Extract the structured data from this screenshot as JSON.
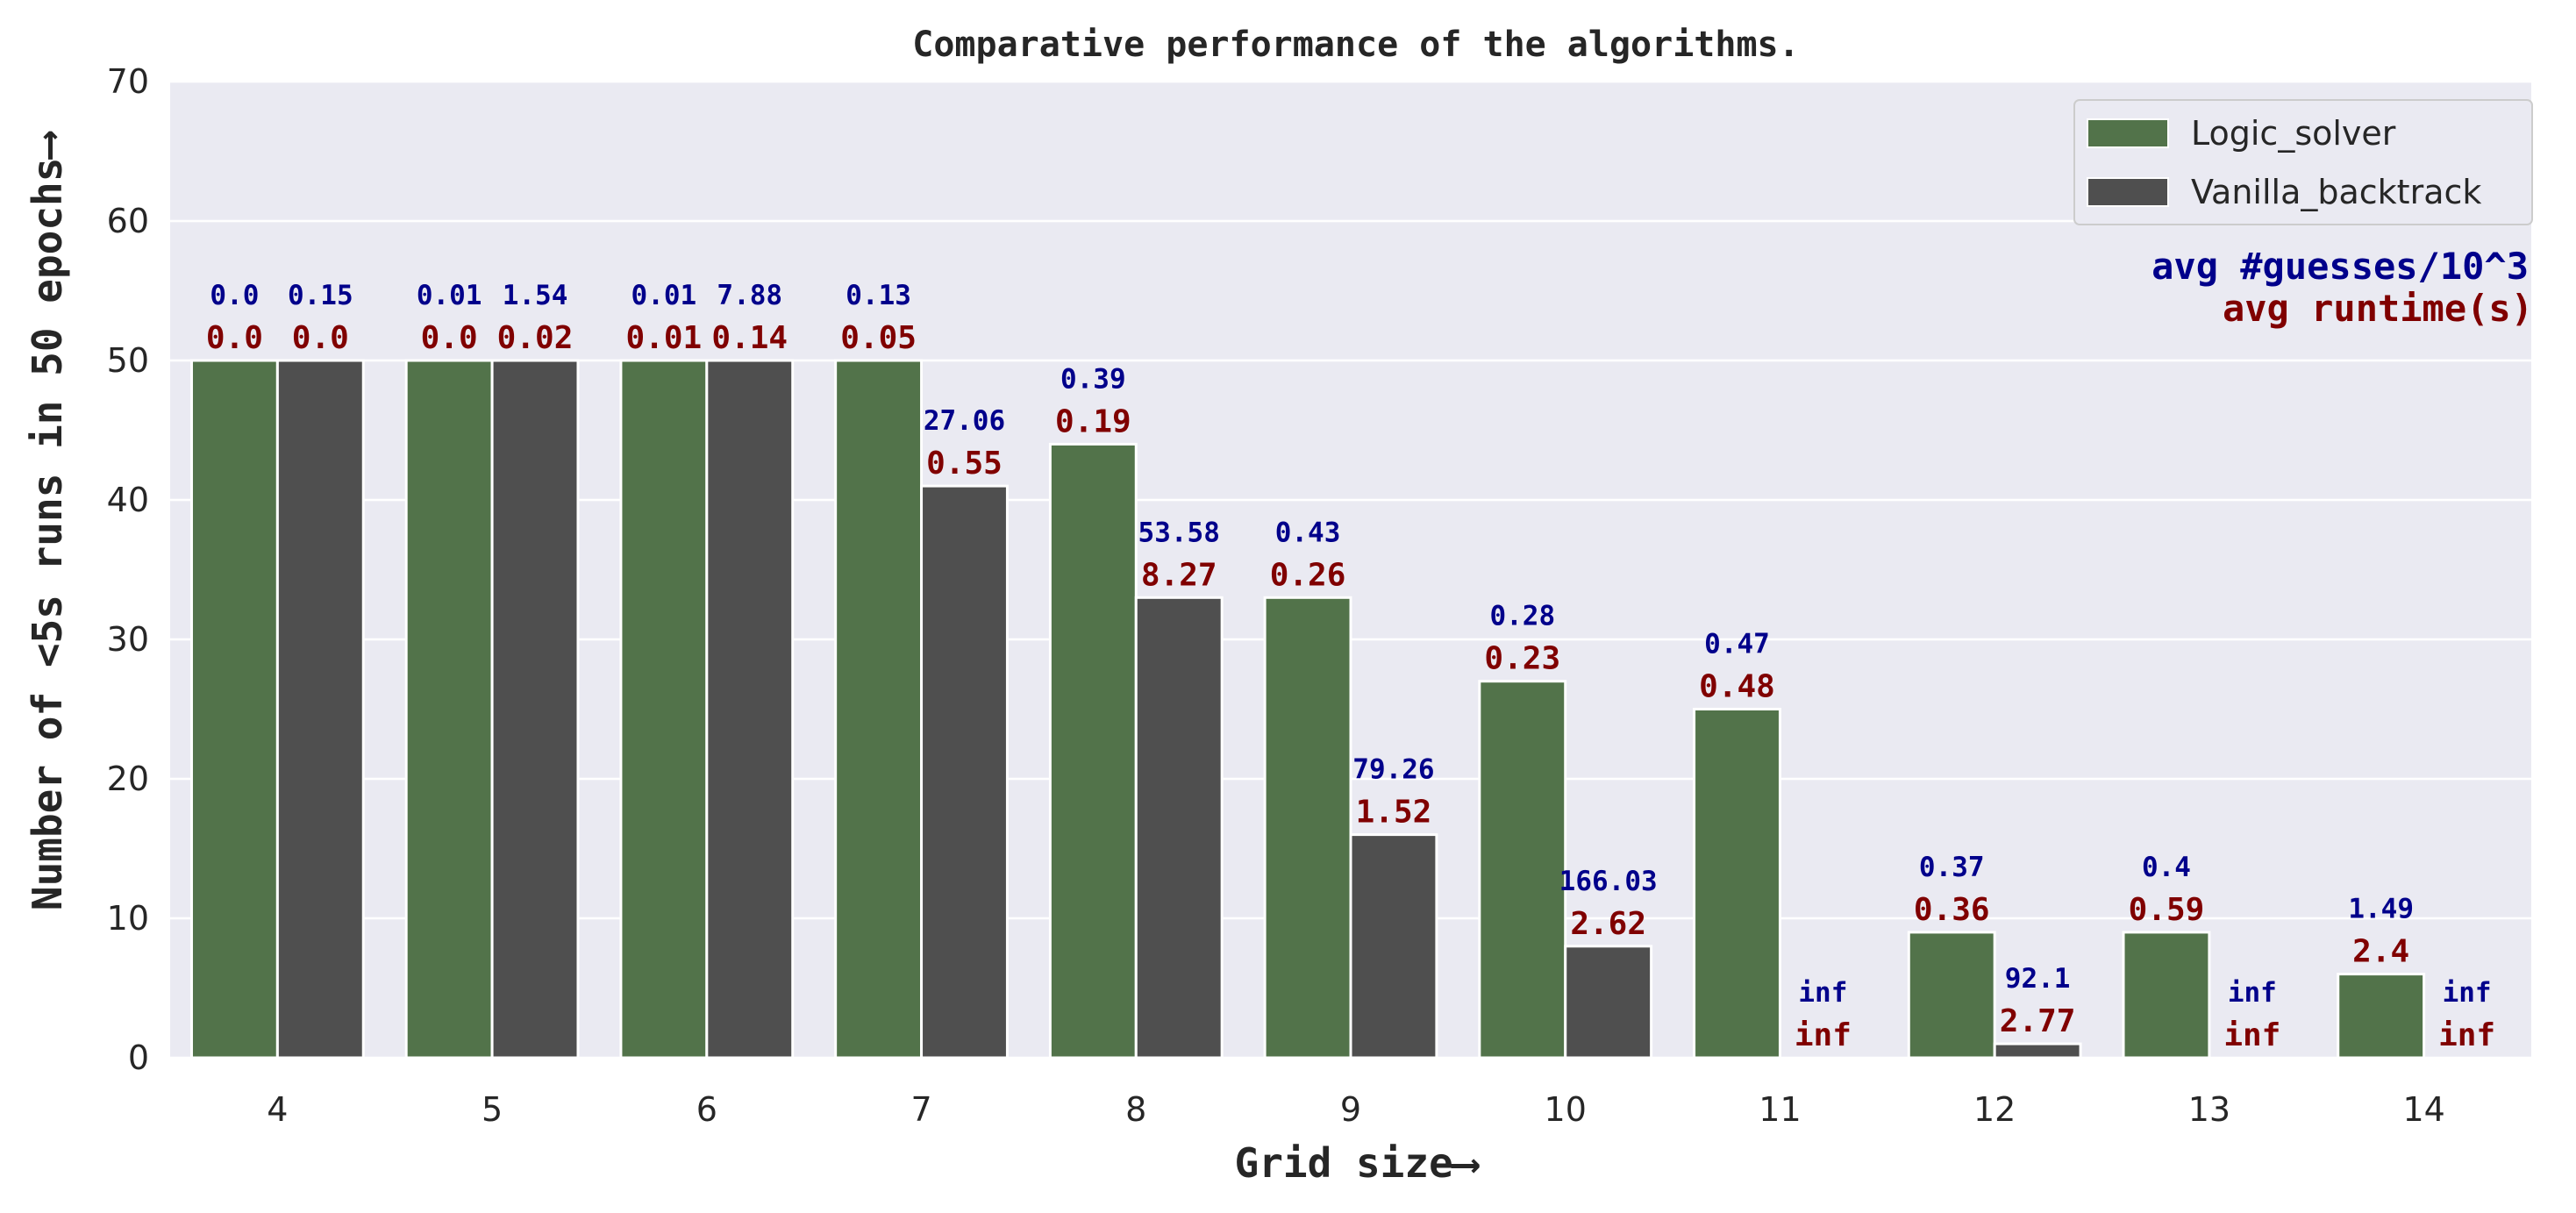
{
  "chart_data": {
    "type": "bar",
    "title": "Comparative performance of the algorithms.",
    "xlabel": "Grid size⟶",
    "ylabel": "Number of <5s runs in 50 epochs⟶",
    "ylim": [
      0,
      70
    ],
    "yticks": [
      0,
      10,
      20,
      30,
      40,
      50,
      60,
      70
    ],
    "categories": [
      "4",
      "5",
      "6",
      "7",
      "8",
      "9",
      "10",
      "11",
      "12",
      "13",
      "14"
    ],
    "grid": true,
    "legend_position": "top-right",
    "series": [
      {
        "name": "Logic_solver",
        "color": "#52734a",
        "values": [
          50,
          50,
          50,
          50,
          44,
          33,
          27,
          25,
          9,
          9,
          6
        ],
        "guesses_labels": [
          "0.0",
          "0.01",
          "0.01",
          "0.13",
          "0.39",
          "0.43",
          "0.28",
          "0.47",
          "0.37",
          "0.4",
          "1.49"
        ],
        "runtime_labels": [
          "0.0",
          "0.0",
          "0.01",
          "0.05",
          "0.19",
          "0.26",
          "0.23",
          "0.48",
          "0.36",
          "0.59",
          "2.4"
        ]
      },
      {
        "name": "Vanilla_backtrack",
        "color": "#4f4f4f",
        "values": [
          50,
          50,
          50,
          41,
          33,
          16,
          8,
          0,
          1,
          0,
          0
        ],
        "guesses_labels": [
          "0.15",
          "1.54",
          "7.88",
          "27.06",
          "53.58",
          "79.26",
          "166.03",
          "inf",
          "92.1",
          "inf",
          "inf"
        ],
        "runtime_labels": [
          "0.0",
          "0.02",
          "0.14",
          "0.55",
          "8.27",
          "1.52",
          "2.62",
          "inf",
          "2.77",
          "inf",
          "inf"
        ]
      }
    ],
    "annotations": {
      "guesses_label": "avg #guesses/10^3",
      "runtime_label": "avg runtime(s)",
      "guesses_color": "#00008b",
      "runtime_color": "#800000"
    },
    "background_color": "#eaeaf2"
  }
}
